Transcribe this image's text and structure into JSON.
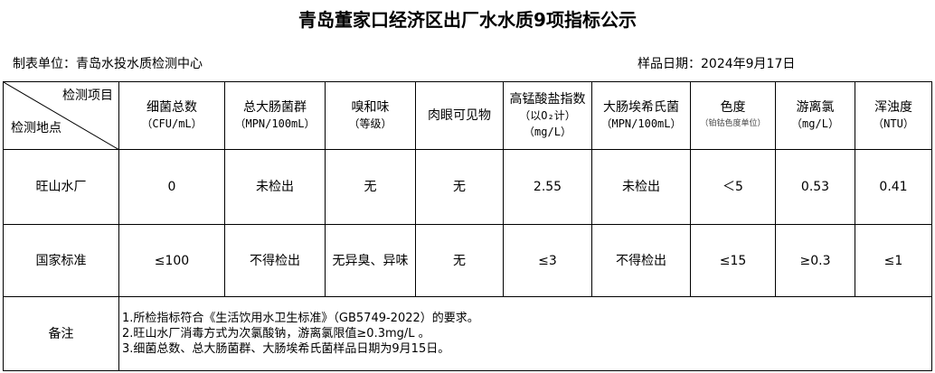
{
  "title": "青岛董家口经济区出厂水水质9项指标公示",
  "unit": "制表单位：青岛水投水质检测中心",
  "sample_date": "样品日期：2024年9月17日",
  "table": {
    "corner_top": "检测项目",
    "corner_bottom": "检测地点",
    "headers": [
      {
        "name": "细菌总数",
        "unit": "（CFU/mL）"
      },
      {
        "name": "总大肠菌群",
        "unit": "（MPN/100mL）"
      },
      {
        "name": "嗅和味",
        "unit": "（等级）"
      },
      {
        "name": "肉眼可见物",
        "unit": ""
      },
      {
        "name": "高锰酸盐指数",
        "unit": "（以O₂计）",
        "unit2": "（mg/L）"
      },
      {
        "name": "大肠埃希氏菌",
        "unit": "（MPN/100mL）"
      },
      {
        "name": "色度",
        "unit": "（铂钴色度单位）"
      },
      {
        "name": "游离氯",
        "unit": "（mg/L）"
      },
      {
        "name": "浑浊度",
        "unit": "（NTU）"
      }
    ],
    "rows": [
      {
        "label": "旺山水厂",
        "values": [
          "0",
          "未检出",
          "无",
          "无",
          "2.55",
          "未检出",
          "＜5",
          "0.53",
          "0.41"
        ]
      },
      {
        "label": "国家标准",
        "values": [
          "≤100",
          "不得检出",
          "无异臭、异味",
          "无",
          "≤3",
          "不得检出",
          "≤15",
          "≥0.3",
          "≤1"
        ]
      }
    ],
    "remarks_label": "备注",
    "remarks": [
      "1.所检指标符合《生活饮用水卫生标准》（GB5749-2022）的要求。",
      "2.旺山水厂消毒方式为次氯酸钠，游离氯限值≥0.3mg/L 。",
      "3.细菌总数、总大肠菌群、大肠埃希氏菌样品日期为9月15日。"
    ]
  }
}
